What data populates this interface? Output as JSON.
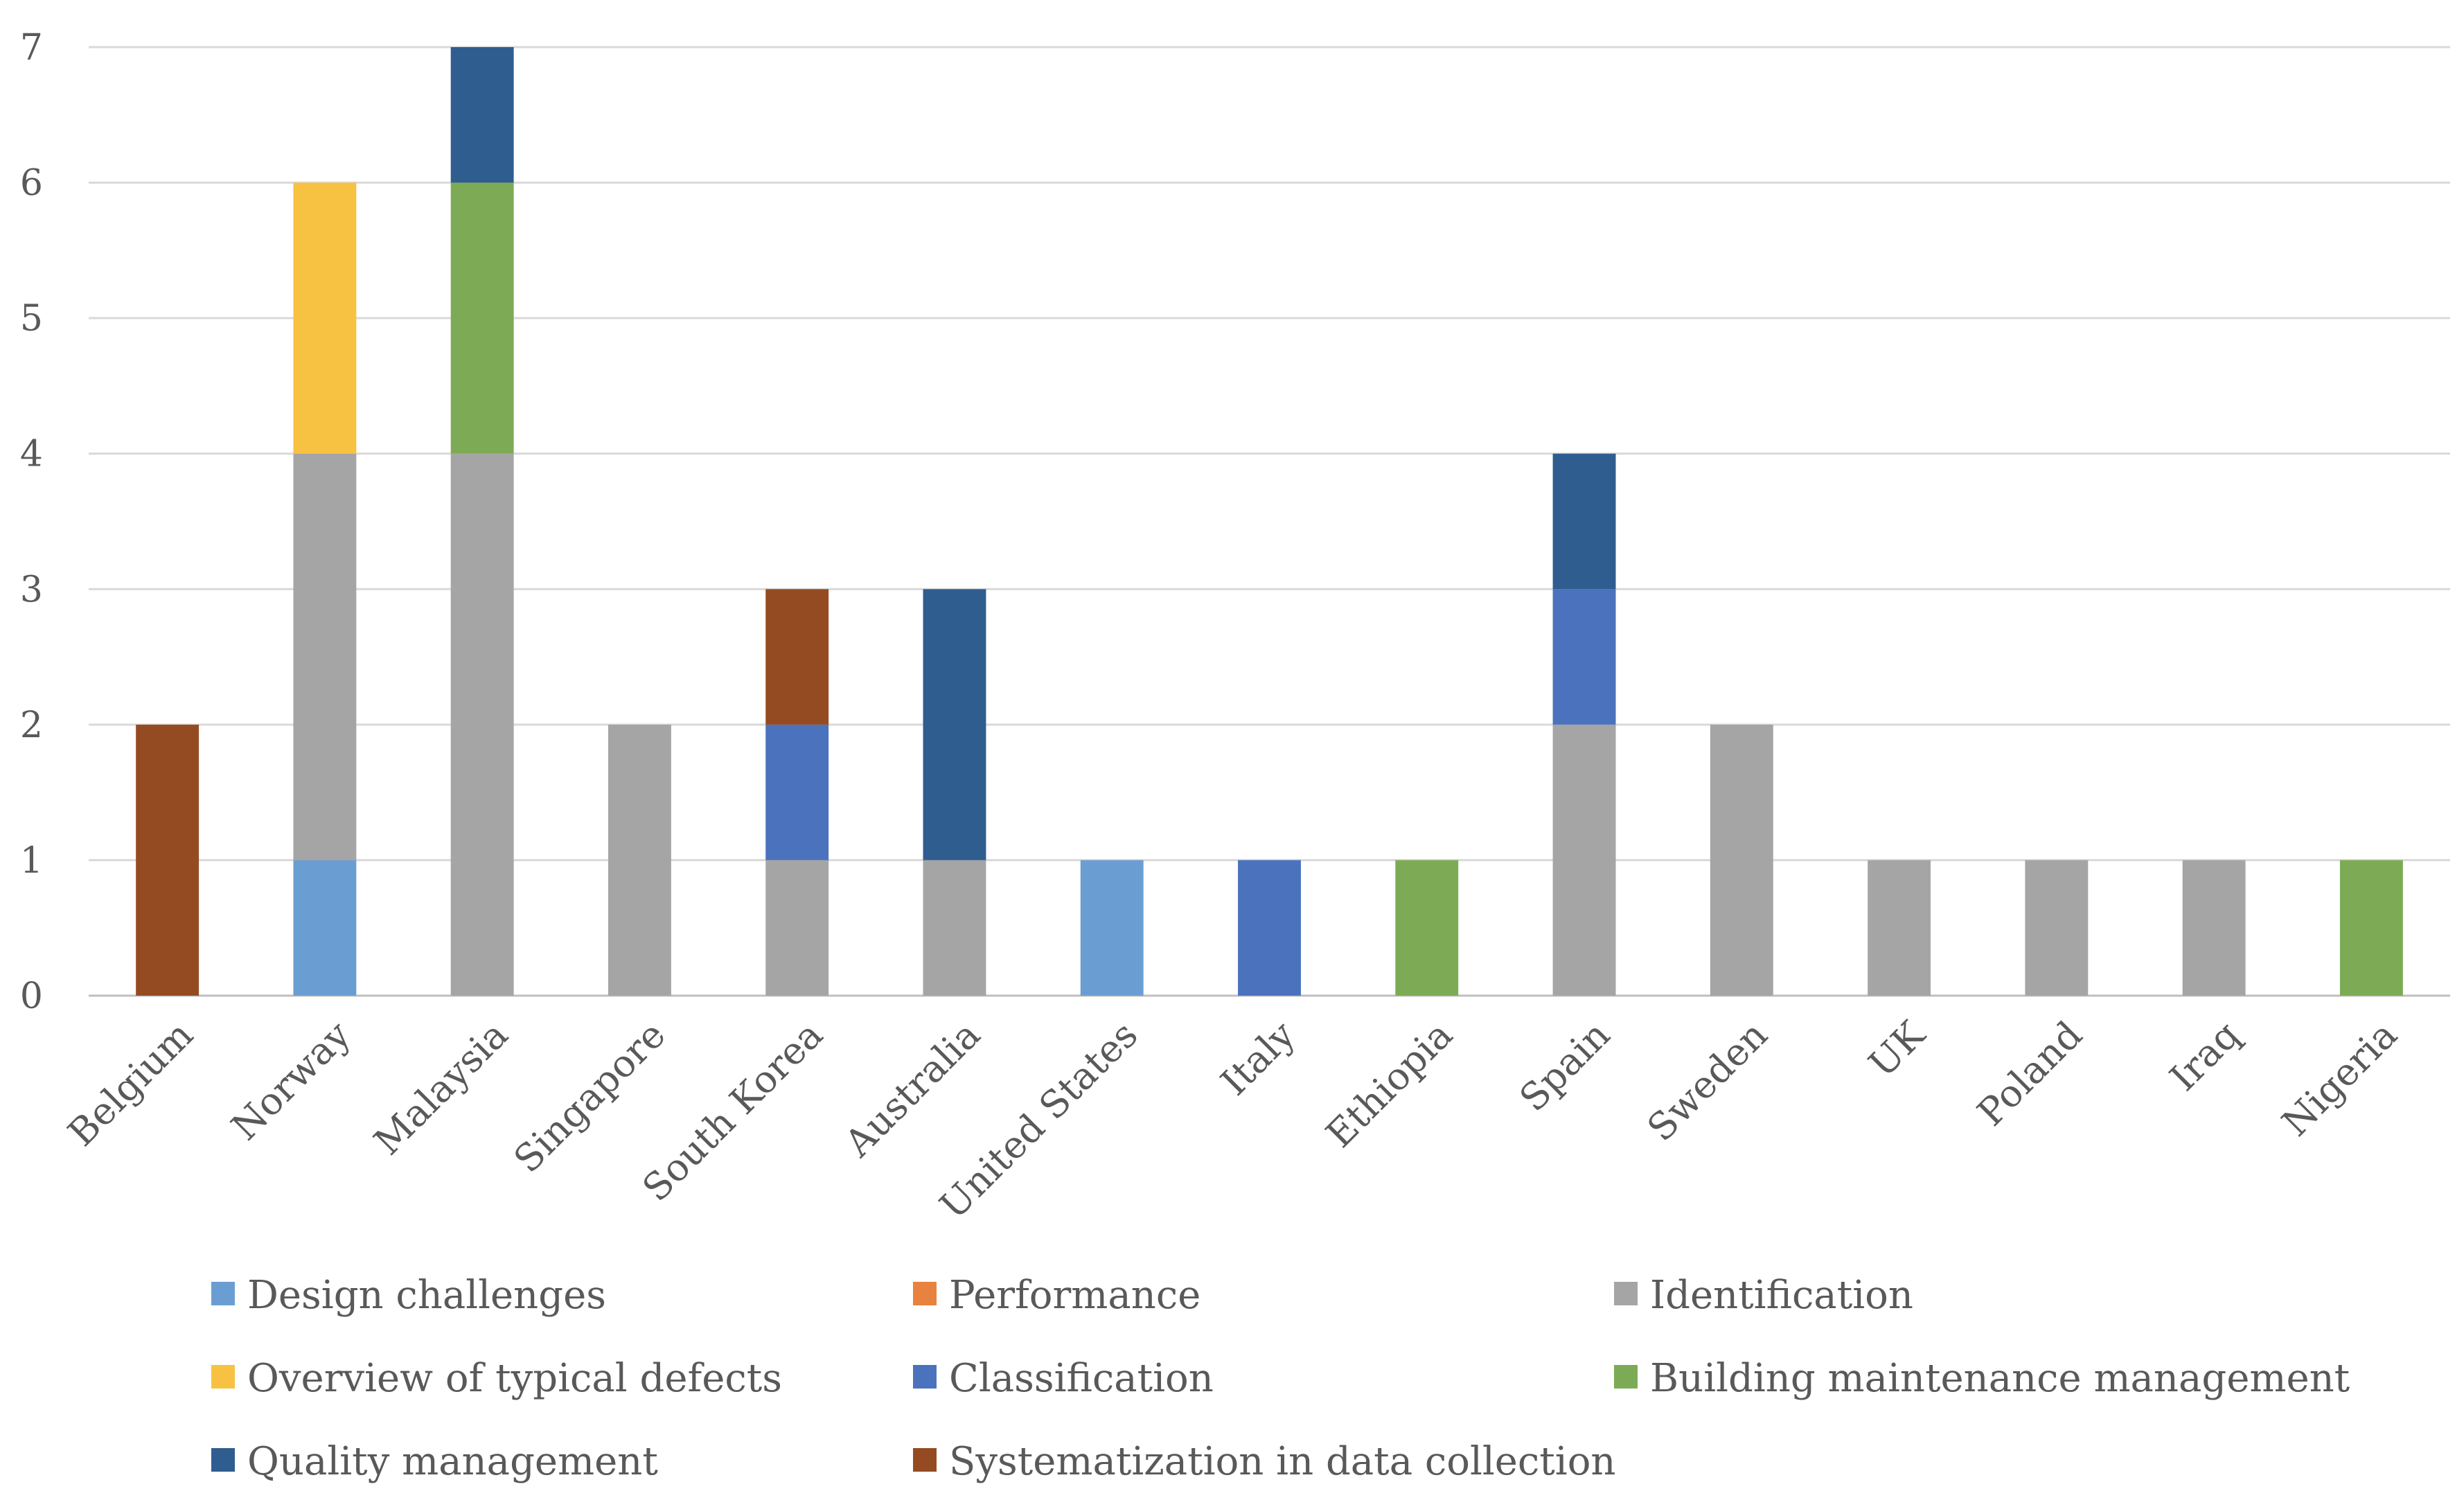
{
  "chart_data": {
    "type": "bar",
    "stacked": true,
    "title": "",
    "xlabel": "",
    "ylabel": "",
    "ylim": [
      0,
      7
    ],
    "yticks": [
      0,
      1,
      2,
      3,
      4,
      5,
      6,
      7
    ],
    "grid": true,
    "legend_position": "bottom",
    "categories": [
      "Belgium",
      "Norway",
      "Malaysia",
      "Singapore",
      "South Korea",
      "Australia",
      "United States",
      "Italy",
      "Ethiopia",
      "Spain",
      "Sweden",
      "UK",
      "Poland",
      "Iraq",
      "Nigeria"
    ],
    "series": [
      {
        "name": "Design challenges",
        "color": "#6a9ed3",
        "values": [
          0,
          1,
          0,
          0,
          0,
          0,
          1,
          0,
          0,
          0,
          0,
          0,
          0,
          0,
          0
        ]
      },
      {
        "name": "Performance",
        "color": "#e8823f",
        "values": [
          0,
          0,
          0,
          0,
          0,
          0,
          0,
          0,
          0,
          0,
          0,
          0,
          0,
          0,
          0
        ]
      },
      {
        "name": "Identification",
        "color": "#a5a5a5",
        "values": [
          0,
          3,
          4,
          2,
          1,
          1,
          0,
          0,
          0,
          2,
          2,
          1,
          1,
          1,
          0
        ]
      },
      {
        "name": "Overview of typical defects",
        "color": "#f7c242",
        "values": [
          0,
          2,
          0,
          0,
          0,
          0,
          0,
          0,
          0,
          0,
          0,
          0,
          0,
          0,
          0
        ]
      },
      {
        "name": "Classification",
        "color": "#4b72bd",
        "values": [
          0,
          0,
          0,
          0,
          1,
          0,
          0,
          1,
          0,
          1,
          0,
          0,
          0,
          0,
          0
        ]
      },
      {
        "name": "Building maintenance management",
        "color": "#7dab55",
        "values": [
          0,
          0,
          2,
          0,
          0,
          0,
          0,
          0,
          1,
          0,
          0,
          0,
          0,
          0,
          1
        ]
      },
      {
        "name": "Quality management",
        "color": "#2f5d90",
        "values": [
          0,
          0,
          1,
          0,
          0,
          2,
          0,
          0,
          0,
          1,
          0,
          0,
          0,
          0,
          0
        ]
      },
      {
        "name": "Systematization in data collection",
        "color": "#954b22",
        "values": [
          2,
          0,
          0,
          0,
          1,
          0,
          0,
          0,
          0,
          0,
          0,
          0,
          0,
          0,
          0
        ]
      }
    ]
  }
}
